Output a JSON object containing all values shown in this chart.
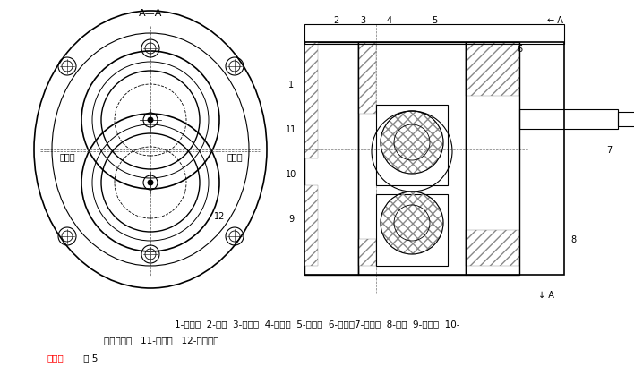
{
  "title": "",
  "bg_color": "#ffffff",
  "fig_width": 7.08,
  "fig_height": 4.39,
  "caption_line1": "1-后盖；  2-螺钉  3-齿轮；  4-泵体；  5-前盖；  6-油封；7-长轴；  8-销；  9-短轴；  10-",
  "caption_line2": "滚针轴承；   11-压盖；   12-泄油通槽",
  "caption_line3_red": "外啮合",
  "caption_line3_black": " 图 5",
  "label_xiyoukou": "吸油口",
  "label_yayoukou": "压油口",
  "label_12": "12",
  "label_AA_top": "A—A",
  "label_A_right_top": "A",
  "label_A_right_bot": "A",
  "section_view_labels": [
    "1",
    "2",
    "3",
    "4",
    "5",
    "6",
    "7",
    "8",
    "9",
    "10",
    "11"
  ],
  "line_color": "#000000",
  "hatching_color": "#333333"
}
